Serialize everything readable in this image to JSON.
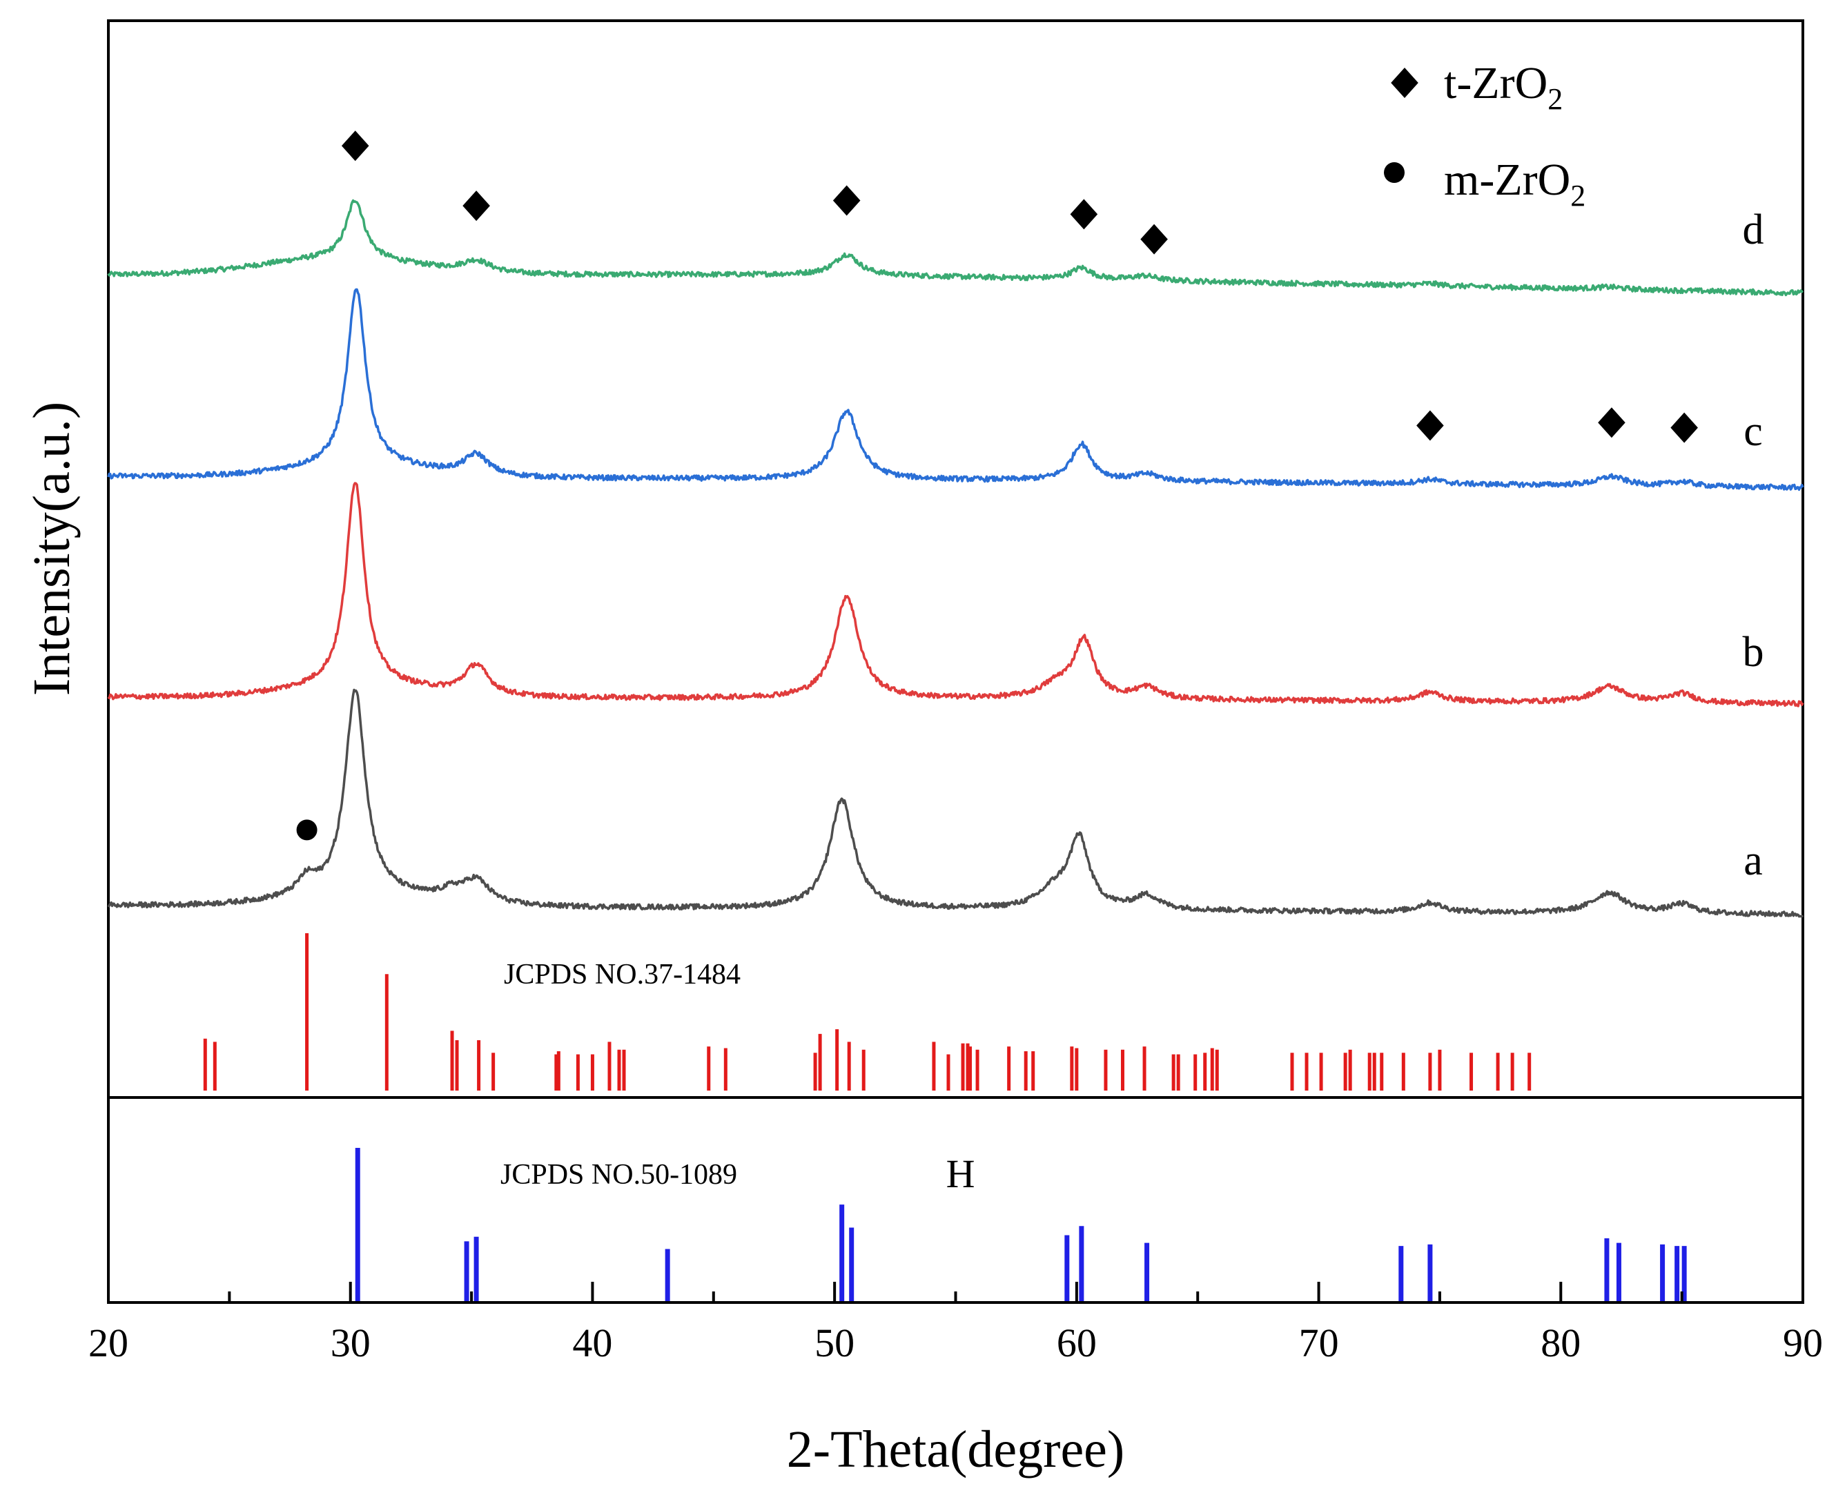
{
  "chart_data": {
    "type": "line",
    "title": "",
    "xlabel": "2-Theta(degree)",
    "ylabel": "Intensity(a.u.)",
    "xlim": [
      20,
      90
    ],
    "x_major_ticks": [
      20,
      30,
      40,
      50,
      60,
      70,
      80,
      90
    ],
    "x_minor_ticks": [
      25,
      35,
      45,
      55,
      65,
      75,
      85
    ],
    "legend": {
      "position": "top-right",
      "entries": [
        {
          "marker": "diamond",
          "label": "t-ZrO",
          "sub": "2"
        },
        {
          "marker": "circle",
          "label": "m-ZrO",
          "sub": "2"
        }
      ]
    },
    "baseline_intensity": {
      "d": 2.0,
      "c": 1.3,
      "b": 0.0,
      "a": -1.0
    },
    "series": [
      {
        "name": "d",
        "color": "#3aaa72",
        "baseline": [
          [
            20,
            2.0
          ],
          [
            50,
            2.0
          ],
          [
            90,
            1.92
          ]
        ],
        "peaks": [
          [
            30.2,
            0.26,
            0.45
          ],
          [
            35.2,
            0.05,
            0.7
          ],
          [
            50.5,
            0.09,
            0.6
          ],
          [
            60.2,
            0.05,
            0.5
          ],
          [
            62.8,
            0.02,
            0.6
          ],
          [
            74.6,
            0.01,
            0.6
          ],
          [
            82.0,
            0.01,
            0.7
          ]
        ],
        "broad": [
          [
            29.5,
            0.07,
            4.5
          ]
        ]
      },
      {
        "name": "c",
        "color": "#2a6fd6",
        "baseline": [
          [
            20,
            1.3
          ],
          [
            60,
            1.28
          ],
          [
            90,
            1.25
          ]
        ],
        "peaks": [
          [
            30.25,
            0.78,
            0.45
          ],
          [
            35.2,
            0.09,
            0.6
          ],
          [
            50.5,
            0.3,
            0.6
          ],
          [
            60.2,
            0.16,
            0.5
          ],
          [
            62.9,
            0.03,
            0.6
          ],
          [
            74.6,
            0.02,
            0.6
          ],
          [
            82.1,
            0.04,
            0.7
          ],
          [
            85.0,
            0.02,
            0.6
          ]
        ],
        "broad": [
          [
            30.5,
            0.05,
            4.0
          ]
        ]
      },
      {
        "name": "b",
        "color": "#e03c3c",
        "baseline": [
          [
            20,
            0.0
          ],
          [
            60,
            -0.01
          ],
          [
            90,
            -0.03
          ]
        ],
        "peaks": [
          [
            30.2,
            0.9,
            0.45
          ],
          [
            35.2,
            0.13,
            0.6
          ],
          [
            50.5,
            0.45,
            0.6
          ],
          [
            60.3,
            0.25,
            0.5
          ],
          [
            59.2,
            0.06,
            0.8
          ],
          [
            62.9,
            0.05,
            0.6
          ],
          [
            74.6,
            0.04,
            0.6
          ],
          [
            82.0,
            0.07,
            0.8
          ],
          [
            85.0,
            0.04,
            0.6
          ]
        ],
        "broad": [
          [
            30.5,
            0.05,
            4.0
          ]
        ]
      },
      {
        "name": "a",
        "color": "#4d4d4d",
        "baseline": [
          [
            20,
            -1.0
          ],
          [
            60,
            -1.02
          ],
          [
            90,
            -1.04
          ]
        ],
        "peaks": [
          [
            30.2,
            0.9,
            0.5
          ],
          [
            28.2,
            0.07,
            0.45
          ],
          [
            35.2,
            0.1,
            0.65
          ],
          [
            34.2,
            0.04,
            0.6
          ],
          [
            50.3,
            0.48,
            0.6
          ],
          [
            60.1,
            0.3,
            0.5
          ],
          [
            59.1,
            0.08,
            0.8
          ],
          [
            62.9,
            0.06,
            0.6
          ],
          [
            74.6,
            0.04,
            0.6
          ],
          [
            82.0,
            0.09,
            0.8
          ],
          [
            85.0,
            0.04,
            0.6
          ]
        ],
        "broad": [
          [
            30.5,
            0.05,
            4.0
          ]
        ]
      }
    ],
    "reference_patterns": [
      {
        "name": "JCPDS NO.37-1484",
        "color": "#e31a1a",
        "lines": [
          [
            24.0,
            0.33
          ],
          [
            24.4,
            0.31
          ],
          [
            28.2,
            1.0
          ],
          [
            31.5,
            0.74
          ],
          [
            34.2,
            0.38
          ],
          [
            34.4,
            0.32
          ],
          [
            35.3,
            0.32
          ],
          [
            35.9,
            0.24
          ],
          [
            38.5,
            0.23
          ],
          [
            38.6,
            0.25
          ],
          [
            39.4,
            0.23
          ],
          [
            40.0,
            0.23
          ],
          [
            40.7,
            0.31
          ],
          [
            41.1,
            0.26
          ],
          [
            41.3,
            0.26
          ],
          [
            44.8,
            0.28
          ],
          [
            45.5,
            0.27
          ],
          [
            49.2,
            0.24
          ],
          [
            49.4,
            0.36
          ],
          [
            50.1,
            0.39
          ],
          [
            50.6,
            0.31
          ],
          [
            51.2,
            0.26
          ],
          [
            54.1,
            0.31
          ],
          [
            54.7,
            0.23
          ],
          [
            55.3,
            0.3
          ],
          [
            55.5,
            0.3
          ],
          [
            55.6,
            0.28
          ],
          [
            55.9,
            0.26
          ],
          [
            57.2,
            0.28
          ],
          [
            57.9,
            0.25
          ],
          [
            58.2,
            0.25
          ],
          [
            59.8,
            0.28
          ],
          [
            60.0,
            0.27
          ],
          [
            61.2,
            0.26
          ],
          [
            61.9,
            0.26
          ],
          [
            62.8,
            0.28
          ],
          [
            64.0,
            0.23
          ],
          [
            64.2,
            0.23
          ],
          [
            64.9,
            0.23
          ],
          [
            65.3,
            0.24
          ],
          [
            65.6,
            0.27
          ],
          [
            65.8,
            0.26
          ],
          [
            68.9,
            0.24
          ],
          [
            69.5,
            0.24
          ],
          [
            70.1,
            0.24
          ],
          [
            71.1,
            0.24
          ],
          [
            71.3,
            0.26
          ],
          [
            72.1,
            0.24
          ],
          [
            72.3,
            0.24
          ],
          [
            72.6,
            0.24
          ],
          [
            73.5,
            0.24
          ],
          [
            74.6,
            0.24
          ],
          [
            75.0,
            0.26
          ],
          [
            76.3,
            0.24
          ],
          [
            77.4,
            0.24
          ],
          [
            78.0,
            0.24
          ],
          [
            78.7,
            0.24
          ]
        ]
      },
      {
        "name": "JCPDS NO.50-1089",
        "color": "#1f1fe6",
        "lines": [
          [
            30.3,
            1.0
          ],
          [
            34.8,
            0.39
          ],
          [
            35.2,
            0.42
          ],
          [
            43.1,
            0.34
          ],
          [
            50.3,
            0.63
          ],
          [
            50.7,
            0.48
          ],
          [
            59.6,
            0.43
          ],
          [
            60.2,
            0.49
          ],
          [
            62.9,
            0.38
          ],
          [
            73.4,
            0.36
          ],
          [
            74.6,
            0.37
          ],
          [
            81.9,
            0.41
          ],
          [
            82.4,
            0.38
          ],
          [
            84.2,
            0.37
          ],
          [
            84.8,
            0.36
          ],
          [
            85.1,
            0.36
          ]
        ]
      }
    ],
    "phase_markers": [
      {
        "series": "d",
        "x": 30.2,
        "marker": "diamond"
      },
      {
        "series": "d",
        "x": 35.2,
        "marker": "diamond"
      },
      {
        "series": "d",
        "x": 50.5,
        "marker": "diamond"
      },
      {
        "series": "d",
        "x": 60.3,
        "marker": "diamond"
      },
      {
        "series": "d",
        "x": 63.2,
        "marker": "diamond"
      },
      {
        "series": "c",
        "x": 74.6,
        "marker": "diamond"
      },
      {
        "series": "c",
        "x": 82.1,
        "marker": "diamond"
      },
      {
        "series": "c",
        "x": 85.1,
        "marker": "diamond"
      },
      {
        "series": "a",
        "x": 28.2,
        "marker": "circle"
      }
    ],
    "annotations": [
      {
        "text": "H",
        "x": 55.2
      }
    ]
  }
}
